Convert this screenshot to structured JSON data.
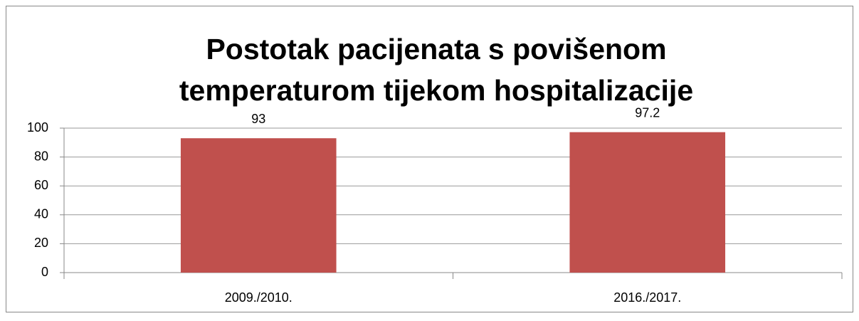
{
  "chart_data": {
    "type": "bar",
    "title": "Postotak pacijenata s povišenom temperaturom tijekom hospitalizacije",
    "categories": [
      "2009./2010.",
      "2016./2017."
    ],
    "values": [
      93,
      97.2
    ],
    "color": "#c0504d",
    "ylim": [
      0,
      100
    ],
    "yticks": [
      0,
      20,
      40,
      60,
      80,
      100
    ],
    "grid": true
  }
}
